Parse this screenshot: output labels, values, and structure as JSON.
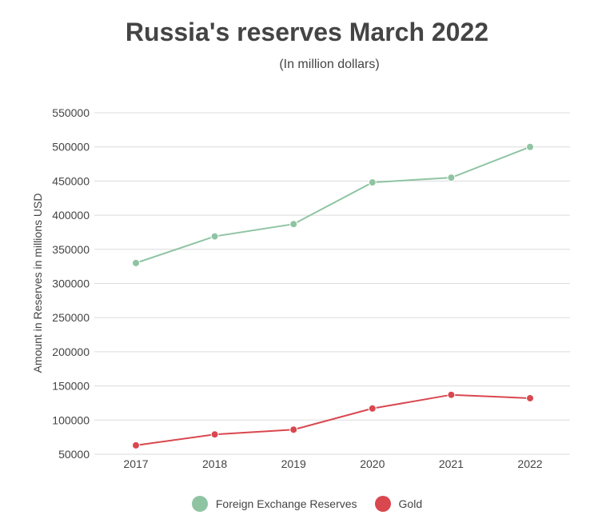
{
  "chart_data": {
    "type": "line",
    "title": "Russia's reserves March 2022",
    "subtitle": "(In million dollars)",
    "ylabel": "Amount in Reserves in millions USD",
    "xlabel": "",
    "categories": [
      "2017",
      "2018",
      "2019",
      "2020",
      "2021",
      "2022"
    ],
    "y_ticks": [
      "50000",
      "100000",
      "150000",
      "200000",
      "250000",
      "300000",
      "350000",
      "400000",
      "450000",
      "500000",
      "550000"
    ],
    "ylim": [
      50000,
      550000
    ],
    "grid": true,
    "legend_position": "bottom",
    "series": [
      {
        "name": "Foreign Exchange Reserves",
        "color": "#8fc4a3",
        "values": [
          330000,
          369000,
          387000,
          448000,
          455000,
          500000
        ]
      },
      {
        "name": "Gold",
        "color": "#d9474f",
        "values": [
          63000,
          79000,
          86000,
          117000,
          137000,
          132000
        ]
      }
    ]
  }
}
